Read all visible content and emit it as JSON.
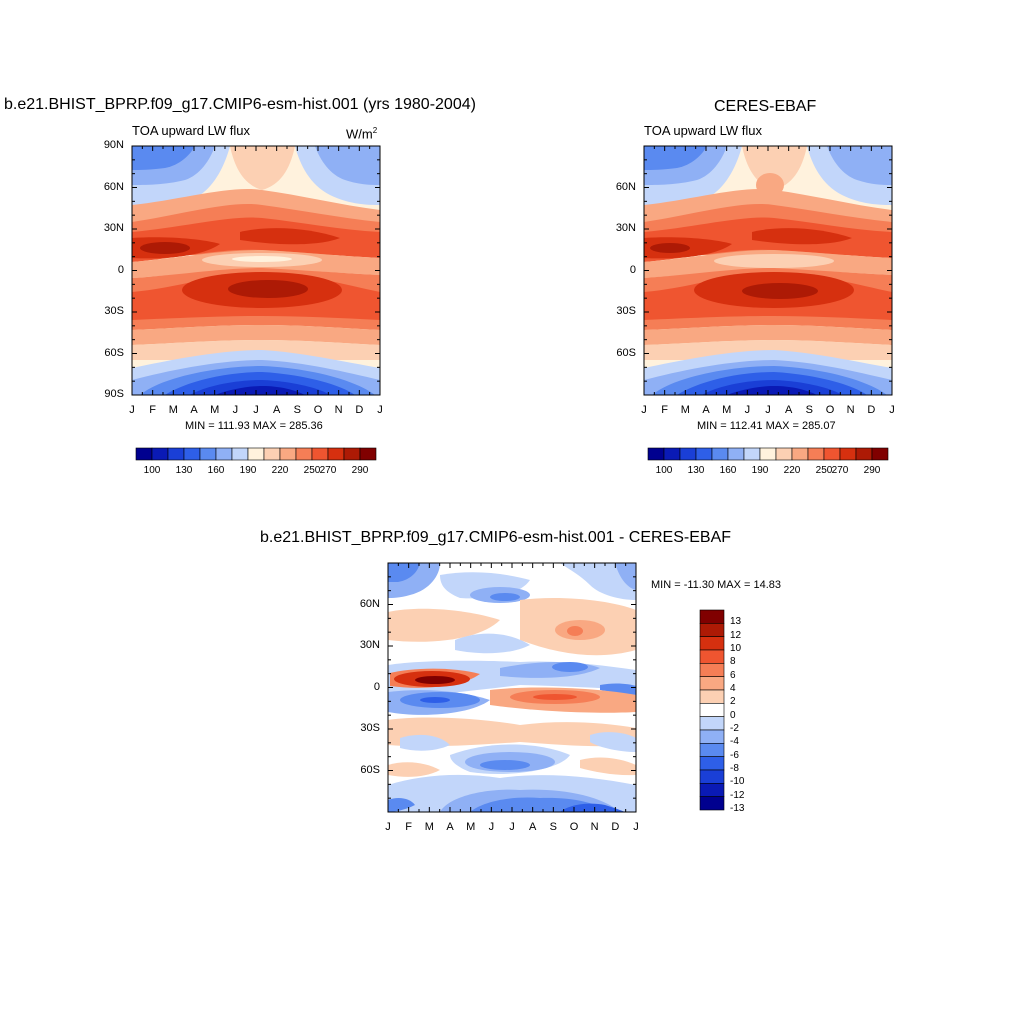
{
  "chart_data": [
    {
      "type": "heatmap",
      "name": "model",
      "title": "b.e21.BHIST_BPRP.f09_g17.CMIP6-esm-hist.001 (yrs 1980-2004)",
      "subtitle": "TOA upward LW flux",
      "units_base": "W/m",
      "units_exp": "2",
      "x_ticks": [
        "J",
        "F",
        "M",
        "A",
        "M",
        "J",
        "J",
        "A",
        "S",
        "O",
        "N",
        "D",
        "J"
      ],
      "y_ticks": [
        "90N",
        "60N",
        "30N",
        "0",
        "30S",
        "60S",
        "90S"
      ],
      "stats": "MIN = 111.93 MAX = 285.36",
      "min": 111.93,
      "max": 285.36,
      "colorbar_labels": [
        "100",
        "130",
        "160",
        "190",
        "220",
        "250",
        "270",
        "290"
      ]
    },
    {
      "type": "heatmap",
      "name": "obs",
      "title": "CERES-EBAF",
      "subtitle": "TOA upward LW flux",
      "x_ticks": [
        "J",
        "F",
        "M",
        "A",
        "M",
        "J",
        "J",
        "A",
        "S",
        "O",
        "N",
        "D",
        "J"
      ],
      "y_ticks": [
        "60N",
        "30N",
        "0",
        "30S",
        "60S"
      ],
      "stats": "MIN = 112.41 MAX = 285.07",
      "min": 112.41,
      "max": 285.07,
      "colorbar_labels": [
        "100",
        "130",
        "160",
        "190",
        "220",
        "250",
        "270",
        "290"
      ]
    },
    {
      "type": "heatmap",
      "name": "diff",
      "title": "b.e21.BHIST_BPRP.f09_g17.CMIP6-esm-hist.001 - CERES-EBAF",
      "x_ticks": [
        "J",
        "F",
        "M",
        "A",
        "M",
        "J",
        "J",
        "A",
        "S",
        "O",
        "N",
        "D",
        "J"
      ],
      "y_ticks": [
        "60N",
        "30N",
        "0",
        "30S",
        "60S"
      ],
      "stats": "MIN = -11.30 MAX =  14.83",
      "min": -11.3,
      "max": 14.83,
      "colorbar_labels": [
        "13",
        "12",
        "10",
        "8",
        "6",
        "4",
        "2",
        "0",
        "-2",
        "-4",
        "-6",
        "-8",
        "-10",
        "-12",
        "-13"
      ]
    }
  ],
  "colors": {
    "abs_scale": [
      "#00008f",
      "#0a1ab5",
      "#1a3fd6",
      "#2e5fe8",
      "#5a8af0",
      "#8fb0f5",
      "#c2d6fa",
      "#fff2dd",
      "#fcd0b3",
      "#f9a882",
      "#f57e56",
      "#ef5530",
      "#d6300f",
      "#ad1a05",
      "#800000"
    ],
    "diff_scale": [
      "#00008f",
      "#0a1ab5",
      "#1a3fd6",
      "#2e5fe8",
      "#5a8af0",
      "#8fb0f5",
      "#c2d6fa",
      "#ffffff",
      "#fcd0b3",
      "#f9a882",
      "#f57e56",
      "#ef5530",
      "#d6300f",
      "#ad1a05",
      "#800000"
    ]
  }
}
